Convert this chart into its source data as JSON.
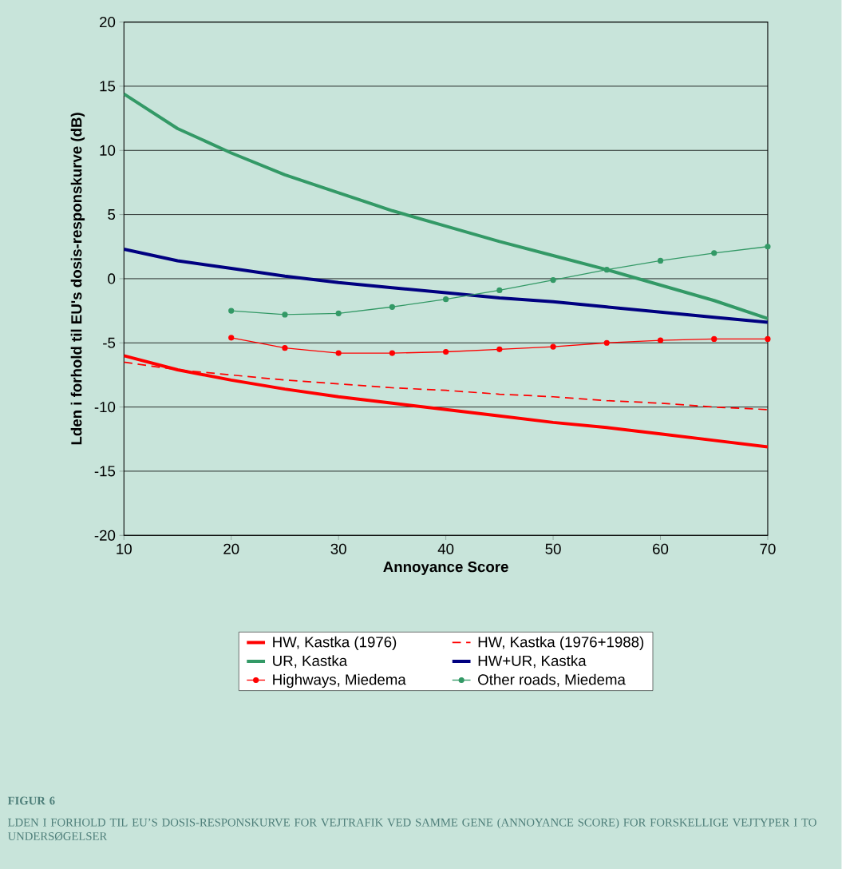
{
  "chart_data": {
    "type": "line",
    "xlabel": "Annoyance Score",
    "ylabel": "Lden i forhold til EU's dosis-responskurve (dB)",
    "xlim": [
      10,
      70
    ],
    "xticks": [
      10,
      20,
      30,
      40,
      50,
      60,
      70
    ],
    "ylim": [
      -20,
      20
    ],
    "yticks": [
      -20,
      -15,
      -10,
      -5,
      0,
      5,
      10,
      15,
      20
    ],
    "grid": "y",
    "legend": "bottom",
    "x": [
      10,
      15,
      20,
      25,
      30,
      35,
      40,
      45,
      50,
      55,
      60,
      65,
      70
    ],
    "series": [
      {
        "name": "HW, Kastka (1976)",
        "color": "#ff0000",
        "line_style": "solid",
        "marker": "none",
        "values": [
          -6.0,
          -7.1,
          -7.9,
          -8.6,
          -9.2,
          -9.7,
          -10.2,
          -10.7,
          -11.2,
          -11.6,
          -12.1,
          -12.6,
          -13.1
        ]
      },
      {
        "name": "HW, Kastka (1976+1988)",
        "color": "#ff0000",
        "line_style": "dashed",
        "marker": "none",
        "values": [
          -6.5,
          -7.1,
          -7.5,
          -7.9,
          -8.2,
          -8.5,
          -8.7,
          -9.0,
          -9.2,
          -9.5,
          -9.7,
          -10.0,
          -10.2
        ]
      },
      {
        "name": "UR, Kastka",
        "color": "#339966",
        "line_style": "solid",
        "marker": "none",
        "values": [
          14.4,
          11.7,
          9.8,
          8.1,
          6.7,
          5.3,
          4.1,
          2.9,
          1.8,
          0.7,
          -0.5,
          -1.7,
          -3.1
        ]
      },
      {
        "name": "HW+UR, Kastka",
        "color": "#000080",
        "line_style": "solid",
        "marker": "none",
        "values": [
          2.3,
          1.4,
          0.8,
          0.2,
          -0.3,
          -0.7,
          -1.1,
          -1.5,
          -1.8,
          -2.2,
          -2.6,
          -3.0,
          -3.4
        ]
      },
      {
        "name": "Highways, Miedema",
        "color": "#ff0000",
        "line_style": "solid",
        "marker": "circle",
        "values": [
          null,
          null,
          -4.6,
          -5.4,
          -5.8,
          -5.8,
          -5.7,
          -5.5,
          -5.3,
          -5.0,
          -4.8,
          -4.7,
          -4.7
        ]
      },
      {
        "name": "Other roads, Miedema",
        "color": "#339966",
        "line_style": "solid",
        "marker": "circle",
        "values": [
          null,
          null,
          -2.5,
          -2.8,
          -2.7,
          -2.2,
          -1.6,
          -0.9,
          -0.1,
          0.7,
          1.4,
          2.0,
          2.5
        ]
      }
    ],
    "annotations": [
      "FIGUR 6",
      "LDEN I FORHOLD TIL EU’S DOSIS-RESPONSKURVE FOR VEJTRAFIK VED SAMME GENE (ANNOYANCE SCORE) FOR FORSKELLIGE VEJTYPER I TO UNDERSØGELSER"
    ]
  }
}
